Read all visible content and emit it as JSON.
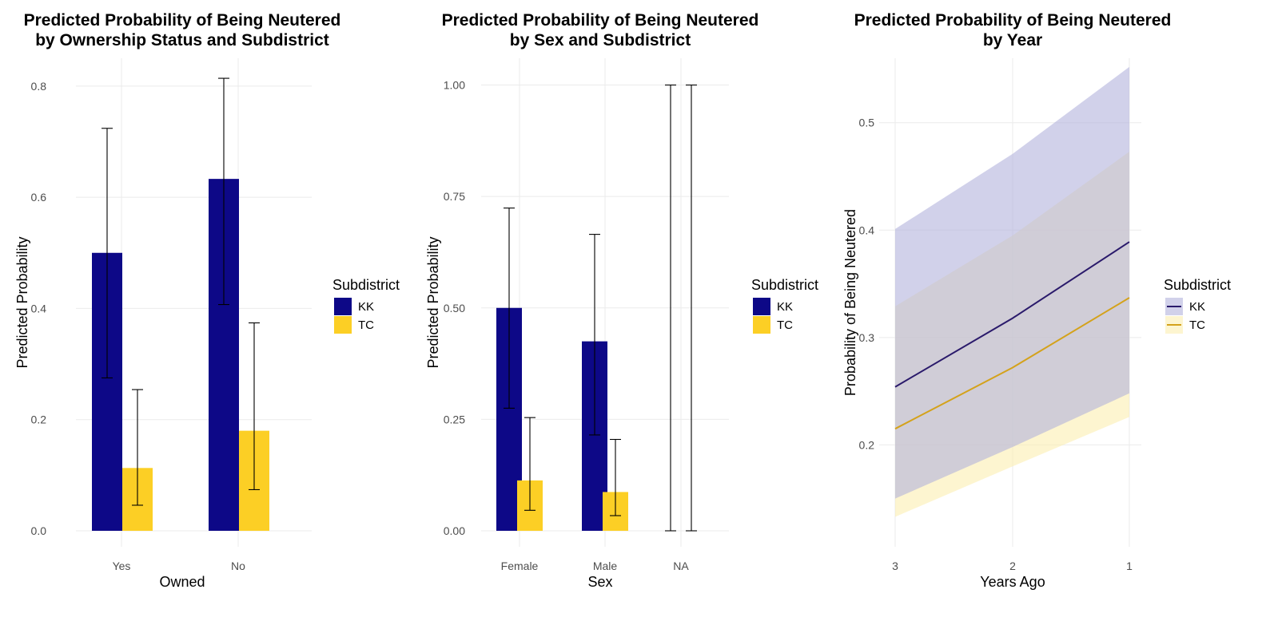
{
  "colors": {
    "KK": "#0d0887",
    "TC": "#fccf25",
    "KK_ribbon": "#b3b3dc",
    "TC_ribbon": "#fcefb0",
    "TC_line": "#d4a21b",
    "KK_line": "#2a1a6b"
  },
  "chart_data": [
    {
      "type": "bar",
      "title": [
        "Predicted Probability of Being Neutered",
        "by Ownership Status and Subdistrict"
      ],
      "xlabel": "Owned",
      "ylabel": "Predicted Probability",
      "categories": [
        "Yes",
        "No"
      ],
      "ylim": [
        0,
        0.85
      ],
      "yticks": [
        0.0,
        0.2,
        0.4,
        0.6,
        0.8
      ],
      "ytick_labels": [
        "0.0",
        "0.2",
        "0.4",
        "0.6",
        "0.8"
      ],
      "grid": true,
      "legend": {
        "title": "Subdistrict",
        "position": "right",
        "entries": [
          "KK",
          "TC"
        ]
      },
      "series": [
        {
          "name": "KK",
          "values": [
            0.5,
            0.633
          ],
          "lower": [
            0.275,
            0.407
          ],
          "upper": [
            0.724,
            0.814
          ]
        },
        {
          "name": "TC",
          "values": [
            0.113,
            0.18
          ],
          "lower": [
            0.046,
            0.074
          ],
          "upper": [
            0.254,
            0.374
          ]
        }
      ]
    },
    {
      "type": "bar",
      "title": [
        "Predicted Probability of Being Neutered",
        "by Sex and Subdistrict"
      ],
      "xlabel": "Sex",
      "ylabel": "Predicted Probability",
      "categories": [
        "Female",
        "Male",
        "NA"
      ],
      "ylim": [
        0,
        1.06
      ],
      "yticks": [
        0.0,
        0.25,
        0.5,
        0.75,
        1.0
      ],
      "ytick_labels": [
        "0.00",
        "0.25",
        "0.50",
        "0.75",
        "1.00"
      ],
      "grid": true,
      "legend": {
        "title": "Subdistrict",
        "position": "right",
        "entries": [
          "KK",
          "TC"
        ]
      },
      "series": [
        {
          "name": "KK",
          "values": [
            0.5,
            0.425,
            0.0
          ],
          "lower": [
            0.275,
            0.215,
            0.0
          ],
          "upper": [
            0.724,
            0.665,
            1.0
          ]
        },
        {
          "name": "TC",
          "values": [
            0.113,
            0.087,
            0.0
          ],
          "lower": [
            0.046,
            0.034,
            0.0
          ],
          "upper": [
            0.254,
            0.205,
            1.0
          ]
        }
      ]
    },
    {
      "type": "line",
      "title": [
        "Predicted Probability of Being Neutered",
        "by Year"
      ],
      "xlabel": "Years Ago",
      "ylabel": "Probability of Being Neutered",
      "x": [
        3,
        2,
        1
      ],
      "x_tick_labels": [
        "3",
        "2",
        "1"
      ],
      "x_reversed": true,
      "ylim": [
        0.12,
        0.56
      ],
      "yticks": [
        0.2,
        0.3,
        0.4,
        0.5
      ],
      "ytick_labels": [
        "0.2",
        "0.3",
        "0.4",
        "0.5"
      ],
      "grid": true,
      "legend": {
        "title": "Subdistrict",
        "position": "right",
        "entries": [
          "KK",
          "TC"
        ]
      },
      "series": [
        {
          "name": "KK",
          "values": [
            0.254,
            0.318,
            0.389
          ],
          "lower": [
            0.15,
            0.198,
            0.248
          ],
          "upper": [
            0.401,
            0.471,
            0.552
          ]
        },
        {
          "name": "TC",
          "values": [
            0.215,
            0.272,
            0.337
          ],
          "lower": [
            0.133,
            0.18,
            0.226
          ],
          "upper": [
            0.329,
            0.395,
            0.473
          ]
        }
      ]
    }
  ]
}
